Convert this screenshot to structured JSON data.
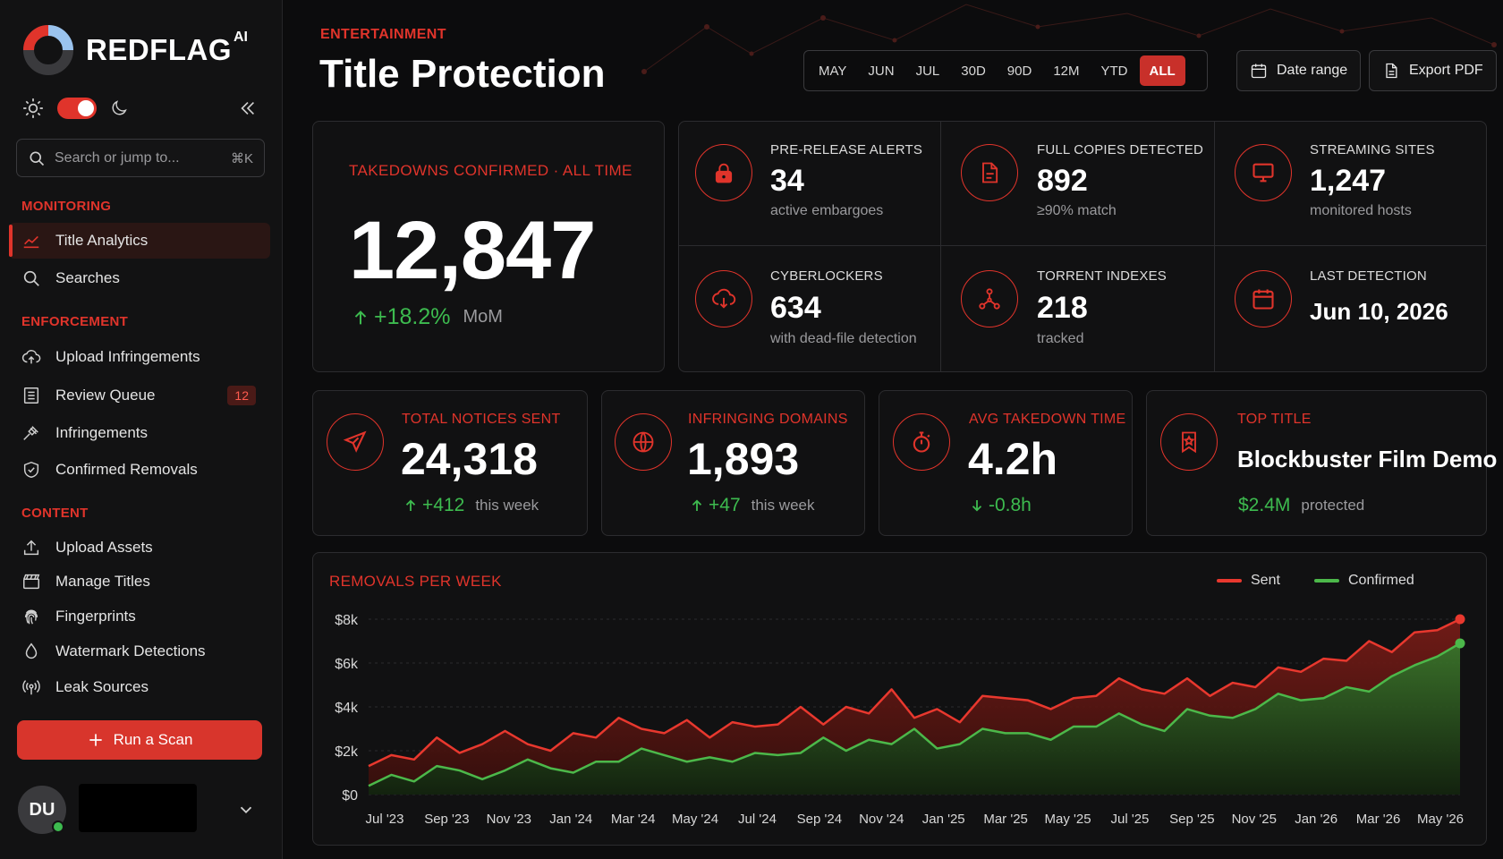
{
  "brand": {
    "name": "REDFLAG",
    "superscript": "AI"
  },
  "search": {
    "placeholder": "Search or jump to...",
    "shortcut": "⌘K"
  },
  "nav": {
    "monitoring_label": "MONITORING",
    "monitoring": [
      {
        "label": "Title Analytics",
        "icon": "trend-chart-icon",
        "active": true
      },
      {
        "label": "Searches",
        "icon": "search-icon"
      }
    ],
    "enforcement_label": "ENFORCEMENT",
    "enforcement": [
      {
        "label": "Upload Infringements",
        "icon": "cloud-upload-icon"
      },
      {
        "label": "Review Queue",
        "icon": "list-icon",
        "badge": "12"
      },
      {
        "label": "Infringements",
        "icon": "gavel-icon"
      },
      {
        "label": "Confirmed Removals",
        "icon": "shield-check-icon"
      }
    ],
    "content_label": "CONTENT",
    "content": [
      {
        "label": "Upload Assets",
        "icon": "upload-icon"
      },
      {
        "label": "Manage Titles",
        "icon": "clapperboard-icon"
      },
      {
        "label": "Fingerprints",
        "icon": "fingerprint-icon"
      },
      {
        "label": "Watermark Detections",
        "icon": "droplet-icon"
      },
      {
        "label": "Leak Sources",
        "icon": "broadcast-icon"
      }
    ]
  },
  "scan_button": "Run a Scan",
  "user": {
    "initials": "DU",
    "status": "online"
  },
  "header": {
    "eyebrow": "ENTERTAINMENT",
    "title": "Title Protection",
    "periods": [
      "MAY",
      "JUN",
      "JUL",
      "30D",
      "90D",
      "12M",
      "YTD",
      "ALL"
    ],
    "active_period": "ALL",
    "date_range": "Date range",
    "export": "Export PDF"
  },
  "hero": {
    "label": "TAKEDOWNS CONFIRMED · ALL TIME",
    "value": "12,847",
    "delta": "+18.2%",
    "delta_suffix": "MoM"
  },
  "stats": [
    {
      "label": "PRE-RELEASE ALERTS",
      "value": "34",
      "sub": "active embargoes",
      "icon": "lock-icon"
    },
    {
      "label": "FULL COPIES DETECTED",
      "value": "892",
      "sub": "≥90% match",
      "icon": "document-icon"
    },
    {
      "label": "STREAMING SITES",
      "value": "1,247",
      "sub": "monitored hosts",
      "icon": "monitor-icon"
    },
    {
      "label": "CYBERLOCKERS",
      "value": "634",
      "sub": "with dead-file detection",
      "icon": "cloud-download-icon"
    },
    {
      "label": "TORRENT INDEXES",
      "value": "218",
      "sub": "tracked",
      "icon": "nodes-icon"
    },
    {
      "label": "LAST DETECTION",
      "value": "Jun 10, 2026",
      "sub": "",
      "icon": "calendar-icon"
    }
  ],
  "kpis": [
    {
      "label": "TOTAL NOTICES SENT",
      "value": "24,318",
      "delta": "+412",
      "sub": "this week",
      "direction": "up",
      "icon": "send-icon"
    },
    {
      "label": "INFRINGING DOMAINS",
      "value": "1,893",
      "delta": "+47",
      "sub": "this week",
      "direction": "up",
      "icon": "globe-icon"
    },
    {
      "label": "AVG TAKEDOWN TIME",
      "value": "4.2h",
      "delta": "-0.8h",
      "sub": "",
      "direction": "down",
      "icon": "stopwatch-icon"
    },
    {
      "label": "TOP TITLE",
      "value": "Blockbuster Film Demo",
      "delta": "$2.4M",
      "sub": "protected",
      "direction": "none",
      "icon": "bookmark-star-icon"
    }
  ],
  "colors": {
    "accent": "#e0342b",
    "positive": "#3dbb4f",
    "background": "#0c0c0d",
    "card": "#111112"
  },
  "chart_data": {
    "type": "area",
    "title": "REMOVALS PER WEEK",
    "ylabel": "",
    "xlabel": "",
    "ylim": [
      0,
      8000
    ],
    "yticks": [
      "$0",
      "$2k",
      "$4k",
      "$6k",
      "$8k"
    ],
    "xticks": [
      "Jul '23",
      "Sep '23",
      "Nov '23",
      "Jan '24",
      "Mar '24",
      "May '24",
      "Jul '24",
      "Sep '24",
      "Nov '24",
      "Jan '25",
      "Mar '25",
      "May '25",
      "Jul '25",
      "Sep '25",
      "Nov '25",
      "Jan '26",
      "Mar '26",
      "May '26"
    ],
    "legend": "top-right",
    "grid": true,
    "series": [
      {
        "name": "Sent",
        "color": "#e8382e",
        "values": [
          1300,
          1800,
          1600,
          2600,
          1900,
          2300,
          2900,
          2300,
          2000,
          2800,
          2600,
          3500,
          3000,
          2800,
          3400,
          2600,
          3300,
          3100,
          3200,
          4000,
          3200,
          4000,
          3700,
          4800,
          3500,
          3900,
          3300,
          4500,
          4400,
          4300,
          3900,
          4400,
          4500,
          5300,
          4800,
          4600,
          5300,
          4500,
          5100,
          4900,
          5800,
          5600,
          6200,
          6100,
          7000,
          6500,
          7400,
          7500,
          8000
        ]
      },
      {
        "name": "Confirmed",
        "color": "#4cb84a",
        "values": [
          400,
          900,
          600,
          1300,
          1100,
          700,
          1100,
          1600,
          1200,
          1000,
          1500,
          1500,
          2100,
          1800,
          1500,
          1700,
          1500,
          1900,
          1800,
          1900,
          2600,
          2000,
          2500,
          2300,
          3000,
          2100,
          2300,
          3000,
          2800,
          2800,
          2500,
          3100,
          3100,
          3700,
          3200,
          2900,
          3900,
          3600,
          3500,
          3900,
          4600,
          4300,
          4400,
          4900,
          4700,
          5400,
          5900,
          6300,
          6900
        ]
      }
    ]
  }
}
